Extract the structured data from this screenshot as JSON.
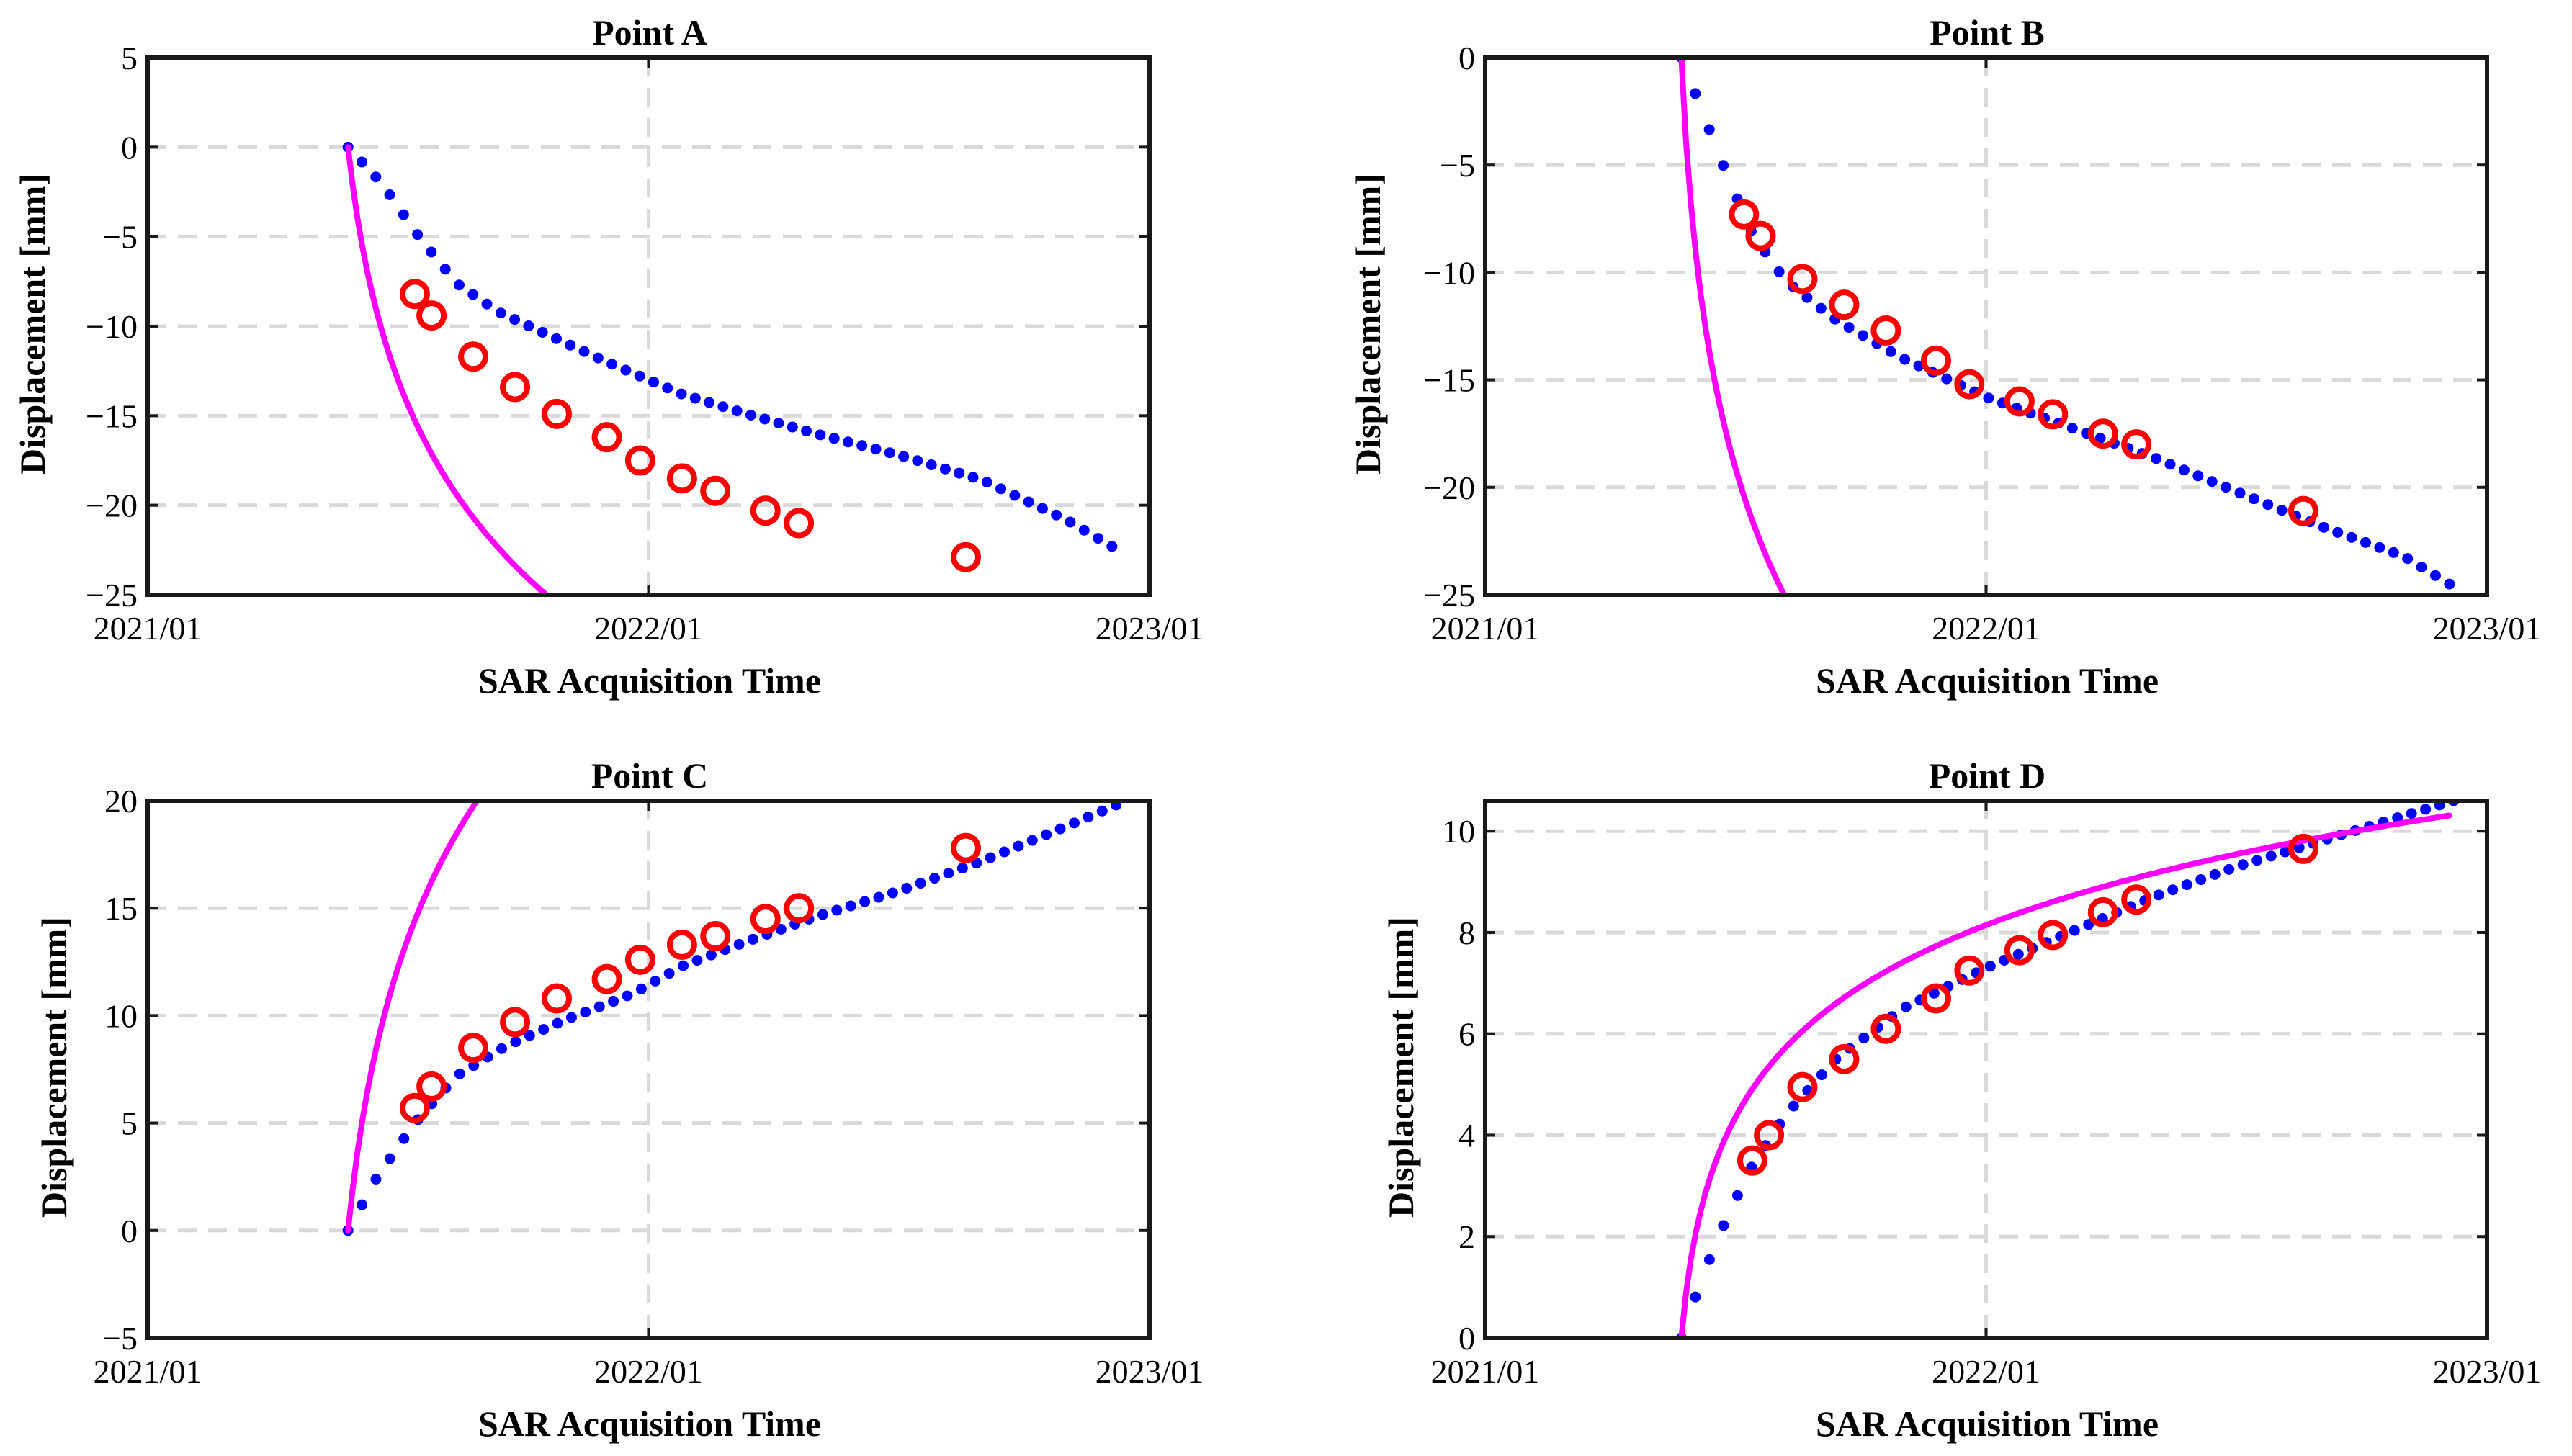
{
  "colors": {
    "observed": "#0000ff",
    "fitted": "#ff00ff",
    "samples": "#ff0000",
    "grid": "#d9d9d9",
    "axis": "#1a1a1a"
  },
  "chart_data": [
    {
      "type": "scatter",
      "title": "Point A",
      "xlabel": "SAR Acquisition Time",
      "ylabel": "Displacement [mm]",
      "x_unit": "months since 2021/01",
      "xlim": [
        0,
        24
      ],
      "ylim": [
        -25,
        5
      ],
      "xticks": [
        0,
        12,
        24
      ],
      "xticklabels": [
        "2021/01",
        "2022/01",
        "2023/01"
      ],
      "yticks": [
        -25,
        -20,
        -15,
        -10,
        -5,
        0,
        5
      ],
      "yticklabels": [
        "−25",
        "−20",
        "−15",
        "−10",
        "−5",
        "0",
        "5"
      ],
      "grid": true,
      "series": [
        {
          "name": "observed",
          "style": "blue dots",
          "x0": 4.8,
          "x1": 23.1,
          "n": 56,
          "x_start": 4.8,
          "y_start": 0,
          "y_end": -22.3,
          "points": [
            [
              4.8,
              0
            ],
            [
              5.6,
              -2
            ],
            [
              6.5,
              -5
            ],
            [
              7.4,
              -7.6
            ],
            [
              8.4,
              -9.2
            ],
            [
              9.7,
              -10.6
            ],
            [
              11.0,
              -12.0
            ],
            [
              11.6,
              -12.6
            ],
            [
              12.8,
              -13.8
            ],
            [
              14.5,
              -15.0
            ],
            [
              16.0,
              -16.0
            ],
            [
              18.0,
              -17.2
            ],
            [
              20.0,
              -18.6
            ],
            [
              22.0,
              -20.8
            ],
            [
              23.1,
              -22.3
            ]
          ]
        },
        {
          "name": "fitted",
          "style": "magenta line",
          "a": 4.8,
          "b": 8.0,
          "c": 0.5,
          "x_range": [
            4.8,
            22.9
          ]
        },
        {
          "name": "samples",
          "style": "red circles",
          "points": [
            [
              6.4,
              -8.2
            ],
            [
              6.8,
              -9.4
            ],
            [
              7.8,
              -11.7
            ],
            [
              8.8,
              -13.4
            ],
            [
              9.8,
              -14.9
            ],
            [
              11.0,
              -16.2
            ],
            [
              11.8,
              -17.5
            ],
            [
              12.8,
              -18.5
            ],
            [
              13.6,
              -19.2
            ],
            [
              14.8,
              -20.3
            ],
            [
              15.6,
              -21.0
            ],
            [
              19.6,
              -22.9
            ]
          ]
        }
      ]
    },
    {
      "type": "scatter",
      "title": "Point B",
      "xlabel": "SAR Acquisition Time",
      "ylabel": "Displacement [mm]",
      "x_unit": "months since 2021/01",
      "xlim": [
        0,
        24
      ],
      "ylim": [
        -25,
        0
      ],
      "xticks": [
        0,
        12,
        24
      ],
      "xticklabels": [
        "2021/01",
        "2022/01",
        "2023/01"
      ],
      "yticks": [
        -25,
        -20,
        -15,
        -10,
        -5,
        0
      ],
      "yticklabels": [
        "−25",
        "−20",
        "−15",
        "−10",
        "−5",
        "0"
      ],
      "grid": true,
      "series": [
        {
          "name": "observed",
          "style": "blue dots",
          "n": 56,
          "points": [
            [
              4.7,
              0
            ],
            [
              5.2,
              -2.5
            ],
            [
              5.8,
              -5.5
            ],
            [
              6.4,
              -8.2
            ],
            [
              7.2,
              -10.4
            ],
            [
              8.4,
              -12.2
            ],
            [
              10.0,
              -14.0
            ],
            [
              12.0,
              -15.8
            ],
            [
              14.0,
              -17.2
            ],
            [
              16.0,
              -18.6
            ],
            [
              18.0,
              -20.2
            ],
            [
              20.0,
              -21.8
            ],
            [
              22.0,
              -23.2
            ],
            [
              23.1,
              -24.5
            ]
          ]
        },
        {
          "name": "fitted",
          "style": "magenta line",
          "a": 5.0,
          "b": 9.0,
          "c": 0.25,
          "x_range": [
            4.7,
            23.0
          ]
        },
        {
          "name": "samples",
          "style": "red circles",
          "points": [
            [
              6.2,
              -7.3
            ],
            [
              6.6,
              -8.3
            ],
            [
              7.6,
              -10.3
            ],
            [
              8.6,
              -11.5
            ],
            [
              9.6,
              -12.7
            ],
            [
              10.8,
              -14.1
            ],
            [
              11.6,
              -15.2
            ],
            [
              12.8,
              -16.0
            ],
            [
              13.6,
              -16.6
            ],
            [
              14.8,
              -17.5
            ],
            [
              15.6,
              -18.0
            ],
            [
              19.6,
              -21.1
            ]
          ]
        }
      ]
    },
    {
      "type": "scatter",
      "title": "Point C",
      "xlabel": "SAR Acquisition Time",
      "ylabel": "Displacement [mm]",
      "x_unit": "months since 2021/01",
      "xlim": [
        0,
        24
      ],
      "ylim": [
        -5,
        20
      ],
      "xticks": [
        0,
        12,
        24
      ],
      "xticklabels": [
        "2021/01",
        "2022/01",
        "2023/01"
      ],
      "yticks": [
        -5,
        0,
        5,
        10,
        15,
        20
      ],
      "yticklabels": [
        "−5",
        "0",
        "5",
        "10",
        "15",
        "20"
      ],
      "grid": true,
      "series": [
        {
          "name": "observed",
          "style": "blue dots",
          "n": 56,
          "points": [
            [
              4.8,
              0
            ],
            [
              5.5,
              2.5
            ],
            [
              6.4,
              5.0
            ],
            [
              7.4,
              7.2
            ],
            [
              8.6,
              8.6
            ],
            [
              10.0,
              9.8
            ],
            [
              11.6,
              11.0
            ],
            [
              12.8,
              12.3
            ],
            [
              14.0,
              13.2
            ],
            [
              16.0,
              14.6
            ],
            [
              18.0,
              15.8
            ],
            [
              20.0,
              17.2
            ],
            [
              22.0,
              18.8
            ],
            [
              23.2,
              19.8
            ]
          ]
        },
        {
          "name": "fitted",
          "style": "magenta line",
          "a": 4.9,
          "b": 7.6,
          "c": 0.55,
          "x_range": [
            4.8,
            22.9
          ]
        },
        {
          "name": "samples",
          "style": "red circles",
          "points": [
            [
              6.4,
              5.7
            ],
            [
              6.8,
              6.7
            ],
            [
              7.8,
              8.5
            ],
            [
              8.8,
              9.7
            ],
            [
              9.8,
              10.8
            ],
            [
              11.0,
              11.7
            ],
            [
              11.8,
              12.6
            ],
            [
              12.8,
              13.3
            ],
            [
              13.6,
              13.7
            ],
            [
              14.8,
              14.5
            ],
            [
              15.6,
              15.0
            ],
            [
              19.6,
              17.8
            ]
          ]
        }
      ]
    },
    {
      "type": "scatter",
      "title": "Point D",
      "xlabel": "SAR Acquisition Time",
      "ylabel": "Displacement [mm]",
      "x_unit": "months since 2021/01",
      "xlim": [
        0,
        24
      ],
      "ylim": [
        0,
        10.6
      ],
      "xticks": [
        0,
        12,
        24
      ],
      "xticklabels": [
        "2021/01",
        "2022/01",
        "2023/01"
      ],
      "yticks": [
        0,
        2,
        4,
        6,
        8,
        10
      ],
      "yticklabels": [
        "0",
        "2",
        "4",
        "6",
        "8",
        "10"
      ],
      "grid": true,
      "series": [
        {
          "name": "observed",
          "style": "blue dots",
          "n": 56,
          "points": [
            [
              4.7,
              0
            ],
            [
              5.2,
              1.2
            ],
            [
              5.8,
              2.4
            ],
            [
              6.4,
              3.4
            ],
            [
              7.2,
              4.4
            ],
            [
              8.4,
              5.5
            ],
            [
              10.0,
              6.5
            ],
            [
              12.0,
              7.3
            ],
            [
              14.0,
              8.0
            ],
            [
              16.0,
              8.7
            ],
            [
              18.0,
              9.3
            ],
            [
              20.0,
              9.8
            ],
            [
              22.0,
              10.3
            ],
            [
              23.2,
              10.6
            ]
          ]
        },
        {
          "name": "fitted",
          "style": "magenta line",
          "a": 3.9,
          "b": 2.63,
          "c": 0.25,
          "x_range": [
            4.7,
            23.1
          ]
        },
        {
          "name": "samples",
          "style": "red circles",
          "points": [
            [
              6.4,
              3.5
            ],
            [
              6.8,
              4.0
            ],
            [
              7.6,
              4.95
            ],
            [
              8.6,
              5.5
            ],
            [
              9.6,
              6.1
            ],
            [
              10.8,
              6.7
            ],
            [
              11.6,
              7.25
            ],
            [
              12.8,
              7.65
            ],
            [
              13.6,
              7.95
            ],
            [
              14.8,
              8.4
            ],
            [
              15.6,
              8.65
            ],
            [
              19.6,
              9.65
            ]
          ]
        }
      ]
    }
  ]
}
